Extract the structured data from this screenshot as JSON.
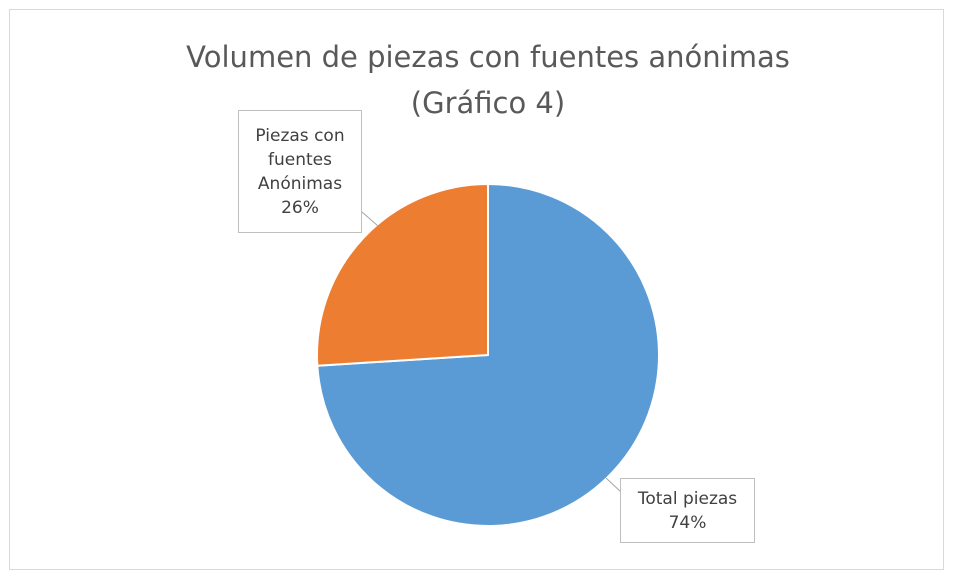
{
  "chart_data": {
    "type": "pie",
    "title": "Volumen de piezas con fuentes anónimas (Gráfico 4)",
    "categories": [
      "Total piezas",
      "Piezas con fuentes Anónimas"
    ],
    "values": [
      74,
      26
    ],
    "value_labels": [
      "74%",
      "26%"
    ],
    "colors": [
      "#5b9bd5",
      "#ed7d31"
    ]
  }
}
